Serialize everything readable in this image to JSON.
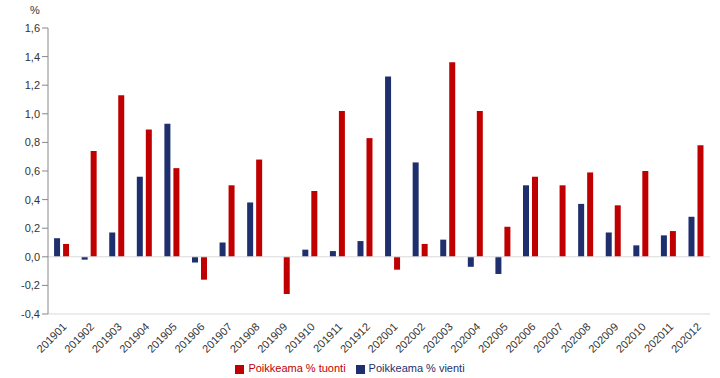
{
  "chart_data": {
    "type": "bar",
    "y_label": "%",
    "categories": [
      "201901",
      "201902",
      "201903",
      "201904",
      "201905",
      "201906",
      "201907",
      "201908",
      "201909",
      "201910",
      "201911",
      "201912",
      "202001",
      "202002",
      "202003",
      "202004",
      "202005",
      "202006",
      "202007",
      "202008",
      "202009",
      "202010",
      "202011",
      "202012"
    ],
    "series": [
      {
        "name": "Poikkeama % vienti",
        "color": "#1f2f6e",
        "values": [
          0.13,
          -0.02,
          0.17,
          0.56,
          0.93,
          -0.04,
          0.1,
          0.38,
          0,
          0.05,
          0.04,
          0.11,
          1.26,
          0.66,
          0.12,
          -0.07,
          -0.12,
          0.5,
          0,
          0.37,
          0.17,
          0.08,
          0.15,
          0.28
        ]
      },
      {
        "name": "Poikkeama % tuonti",
        "color": "#c00000",
        "values": [
          0.09,
          0.74,
          1.13,
          0.89,
          0.62,
          -0.16,
          0.5,
          0.68,
          -0.26,
          0.46,
          1.02,
          0.83,
          -0.09,
          0.09,
          1.36,
          1.02,
          0.21,
          0.56,
          0.5,
          0.59,
          0.36,
          0.6,
          0.18,
          0.78
        ]
      }
    ],
    "ylim": [
      -0.4,
      1.6
    ],
    "yticks": [
      {
        "value": -0.4,
        "label": "-0,4"
      },
      {
        "value": -0.2,
        "label": "-0,2"
      },
      {
        "value": 0,
        "label": "0,0"
      },
      {
        "value": 0.2,
        "label": "0,2"
      },
      {
        "value": 0.4,
        "label": "0,4"
      },
      {
        "value": 0.6,
        "label": "0,6"
      },
      {
        "value": 0.8,
        "label": "0,8"
      },
      {
        "value": 1.0,
        "label": "1,0"
      },
      {
        "value": 1.2,
        "label": "1,2"
      },
      {
        "value": 1.4,
        "label": "1,4"
      },
      {
        "value": 1.6,
        "label": "1,6"
      }
    ],
    "grid": false,
    "legend": "bottom"
  }
}
